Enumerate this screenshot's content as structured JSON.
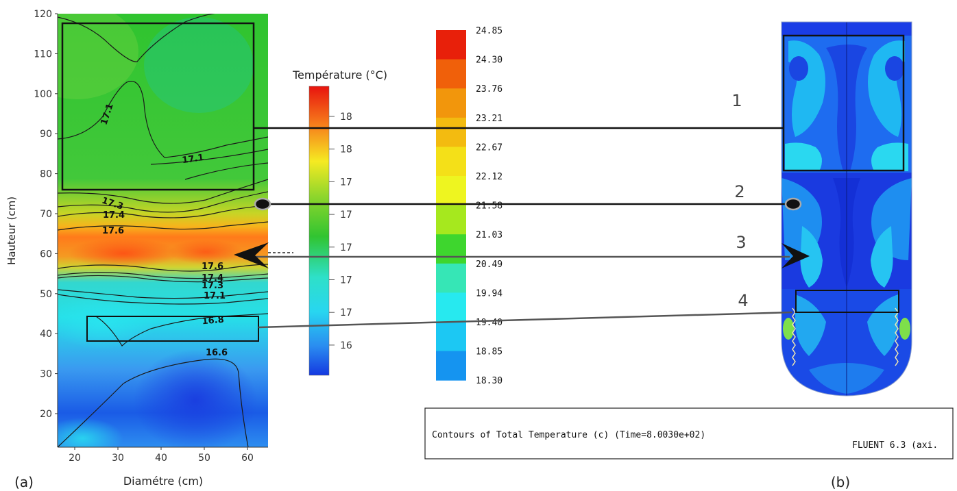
{
  "panel_a": {
    "label": "(a)",
    "y_axis_label": "Hauteur (cm)",
    "x_axis_label": "Diamétre (cm)",
    "y_ticks": [
      "120",
      "110",
      "100",
      "90",
      "80",
      "70",
      "60",
      "50",
      "40",
      "30",
      "20"
    ],
    "x_ticks": [
      "20",
      "30",
      "40",
      "50",
      "60"
    ],
    "contour_labels": [
      "17.1",
      "17.1",
      "17.3",
      "17.4",
      "17.6",
      "17.6",
      "17.4",
      "17.3",
      "17.1",
      "16.8",
      "16.6"
    ]
  },
  "colorbar_a": {
    "title": "Température (°C)",
    "ticks": [
      "18",
      "18",
      "17",
      "17",
      "17",
      "17",
      "17",
      "16"
    ]
  },
  "colorbar_b": {
    "values": [
      "24.85",
      "24.30",
      "23.76",
      "23.21",
      "22.67",
      "22.12",
      "21.58",
      "21.03",
      "20.49",
      "19.94",
      "19.40",
      "18.85",
      "18.30"
    ],
    "colors": [
      "#e8200a",
      "#f0600a",
      "#f2960c",
      "#f3bb10",
      "#f4e018",
      "#eef520",
      "#a6e81e",
      "#3ed62e",
      "#36e6b6",
      "#27e9ef",
      "#1cc8f3",
      "#1594f0",
      "#0c3de6"
    ]
  },
  "panel_b": {
    "label": "(b)",
    "caption": "Contours of Total Temperature (c)  (Time=8.0030e+02)",
    "solver": "FLUENT 6.3 (axi."
  },
  "connectors": {
    "labels": [
      "1",
      "2",
      "3",
      "4"
    ]
  }
}
